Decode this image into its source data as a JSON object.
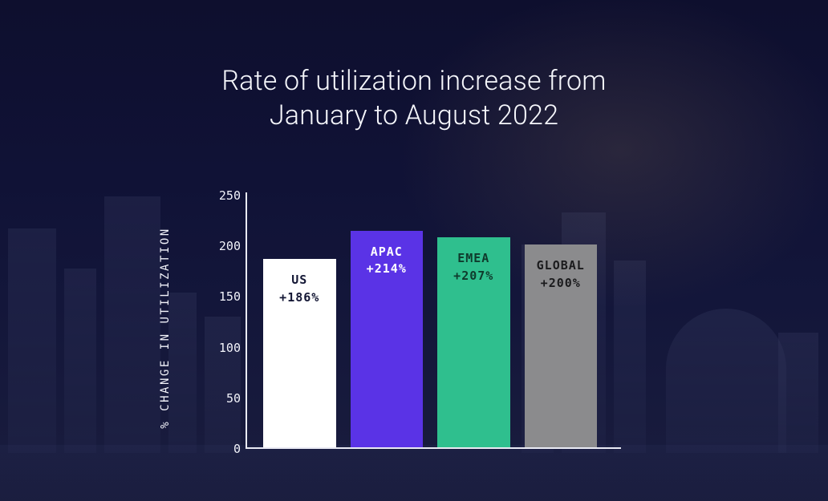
{
  "title": {
    "line1": "Rate of utilization increase from",
    "line2": "January to August 2022",
    "fontsize": 34,
    "color": "#f5f6fb"
  },
  "chart": {
    "type": "bar",
    "y_axis_label": "% CHANGE IN UTILIZATION",
    "y_axis_label_fontsize": 14,
    "ylim": [
      0,
      250
    ],
    "ytick_step": 50,
    "yticks": [
      0,
      50,
      100,
      150,
      200,
      250
    ],
    "tick_fontsize": 15,
    "axis_color": "#e9eaf4",
    "text_color": "#f2f3fa",
    "label_fontsize": 15,
    "bar_width_ratio": 0.82,
    "bars": [
      {
        "name": "US",
        "value": 186,
        "value_label": "+186%",
        "fill": "#ffffff",
        "label_color": "#141735"
      },
      {
        "name": "APAC",
        "value": 214,
        "value_label": "+214%",
        "fill": "#5a33e6",
        "label_color": "#ffffff"
      },
      {
        "name": "EMEA",
        "value": 207,
        "value_label": "+207%",
        "fill": "#2fbf8e",
        "label_color": "#0f3a2c"
      },
      {
        "name": "GLOBAL",
        "value": 200,
        "value_label": "+200%",
        "fill": "#8b8b8d",
        "label_color": "#1b1b1d"
      }
    ]
  },
  "background": {
    "base_color": "#101236"
  }
}
